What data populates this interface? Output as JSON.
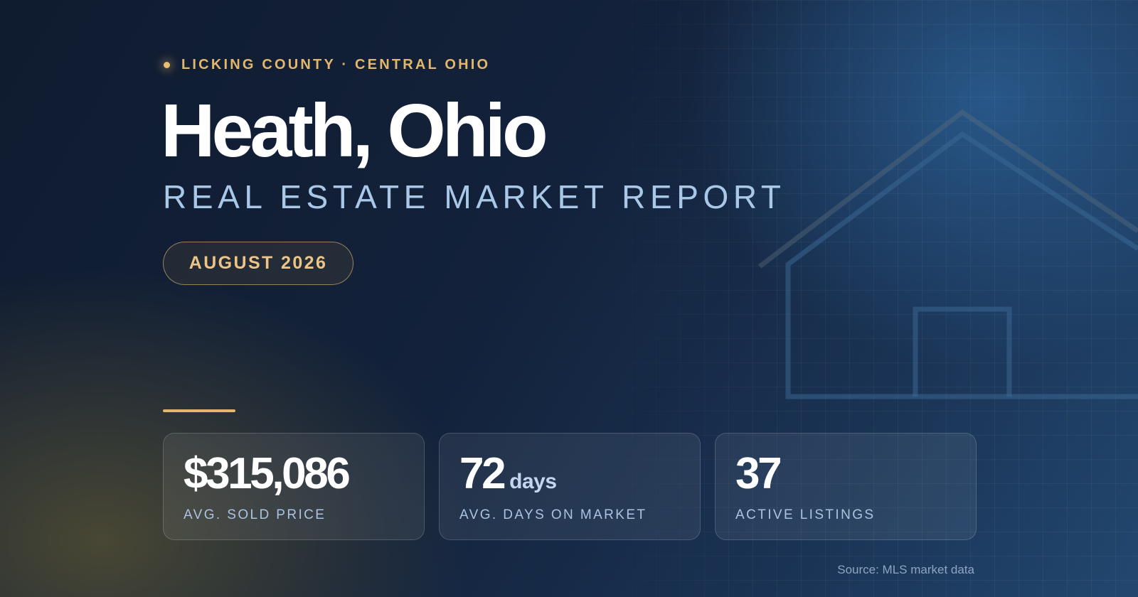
{
  "header": {
    "eyebrow": "LICKING COUNTY · CENTRAL OHIO",
    "title": "Heath, Ohio",
    "subtitle": "REAL ESTATE MARKET REPORT",
    "date": "AUGUST 2026"
  },
  "stats": [
    {
      "value": "$315,086",
      "unit": "",
      "label": "AVG. SOLD PRICE"
    },
    {
      "value": "72",
      "unit": "days",
      "label": "AVG. DAYS ON MARKET"
    },
    {
      "value": "37",
      "unit": "",
      "label": "ACTIVE LISTINGS"
    }
  ],
  "footer": {
    "source": "Source: MLS market data"
  },
  "colors": {
    "accent": "#e2b66d",
    "subtitle": "#a9c8e8",
    "background": "#13223b"
  },
  "icons": {
    "eyebrow_marker": "dot-icon",
    "background_illustration": "house-outline-icon"
  }
}
